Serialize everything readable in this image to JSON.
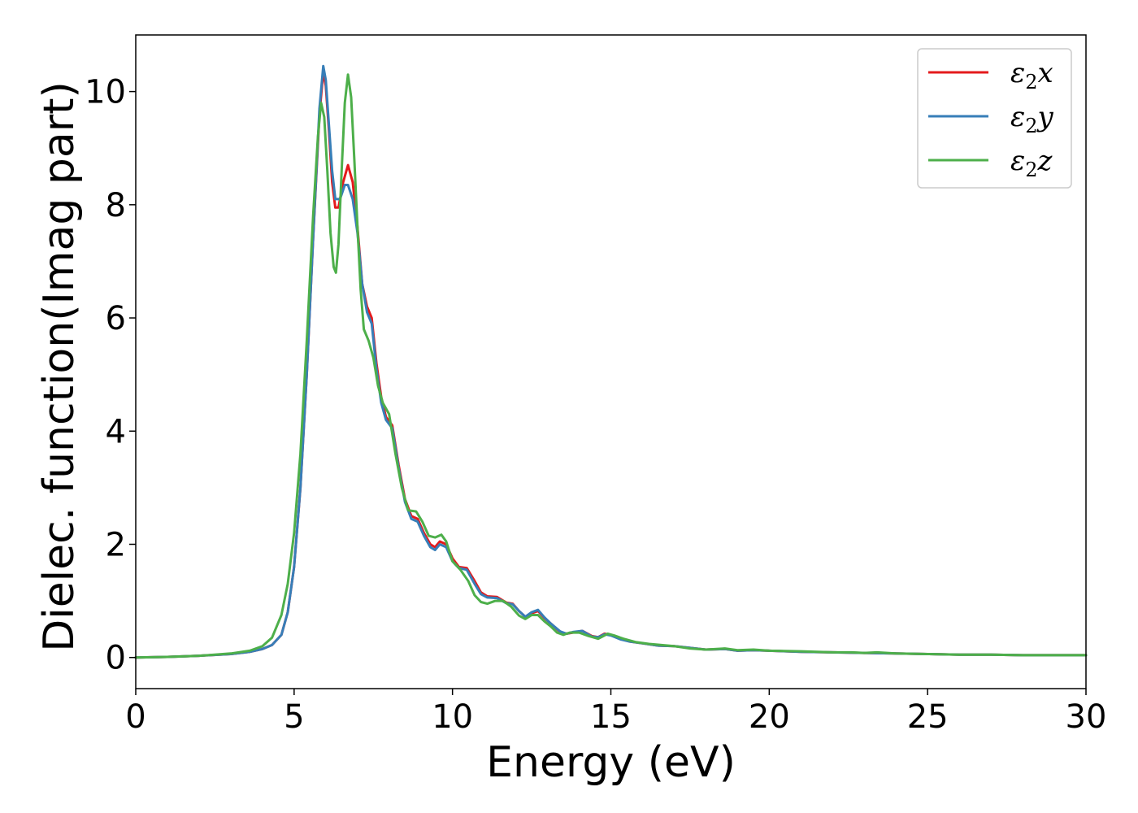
{
  "chart_data": {
    "type": "line",
    "title": "",
    "xlabel": "Energy (eV)",
    "ylabel": "Dielec. function(Imag part)",
    "xlim": [
      0,
      30
    ],
    "ylim": [
      -0.55,
      11.0
    ],
    "xticks": [
      0,
      5,
      10,
      15,
      20,
      25,
      30
    ],
    "xtick_labels": [
      "0",
      "5",
      "10",
      "15",
      "20",
      "25",
      "30"
    ],
    "yticks": [
      0,
      2,
      4,
      6,
      8,
      10
    ],
    "ytick_labels": [
      "0",
      "2",
      "4",
      "6",
      "8",
      "10"
    ],
    "grid": false,
    "legend_position": "top-right",
    "series": [
      {
        "name": "ε2x",
        "legend_base": "ε",
        "legend_sub": "2",
        "legend_tail": "x",
        "color": "#e41a1c",
        "points": [
          [
            0,
            0
          ],
          [
            1,
            0.01
          ],
          [
            2,
            0.03
          ],
          [
            3,
            0.06
          ],
          [
            3.6,
            0.1
          ],
          [
            4,
            0.15
          ],
          [
            4.3,
            0.22
          ],
          [
            4.6,
            0.4
          ],
          [
            4.8,
            0.8
          ],
          [
            5.0,
            1.6
          ],
          [
            5.2,
            3.0
          ],
          [
            5.4,
            5.0
          ],
          [
            5.6,
            7.4
          ],
          [
            5.8,
            9.6
          ],
          [
            5.92,
            10.35
          ],
          [
            6.0,
            10.1
          ],
          [
            6.1,
            9.3
          ],
          [
            6.2,
            8.4
          ],
          [
            6.3,
            7.95
          ],
          [
            6.4,
            7.95
          ],
          [
            6.55,
            8.4
          ],
          [
            6.7,
            8.7
          ],
          [
            6.85,
            8.4
          ],
          [
            7.0,
            7.6
          ],
          [
            7.15,
            6.6
          ],
          [
            7.3,
            6.2
          ],
          [
            7.45,
            6.0
          ],
          [
            7.6,
            5.2
          ],
          [
            7.75,
            4.6
          ],
          [
            7.9,
            4.25
          ],
          [
            8.1,
            4.1
          ],
          [
            8.3,
            3.4
          ],
          [
            8.5,
            2.8
          ],
          [
            8.7,
            2.5
          ],
          [
            8.9,
            2.45
          ],
          [
            9.1,
            2.2
          ],
          [
            9.3,
            2.0
          ],
          [
            9.45,
            1.95
          ],
          [
            9.6,
            2.05
          ],
          [
            9.8,
            2.0
          ],
          [
            10.0,
            1.75
          ],
          [
            10.2,
            1.6
          ],
          [
            10.45,
            1.58
          ],
          [
            10.7,
            1.35
          ],
          [
            10.9,
            1.15
          ],
          [
            11.1,
            1.08
          ],
          [
            11.4,
            1.07
          ],
          [
            11.7,
            0.97
          ],
          [
            11.9,
            0.95
          ],
          [
            12.1,
            0.82
          ],
          [
            12.3,
            0.72
          ],
          [
            12.5,
            0.78
          ],
          [
            12.7,
            0.82
          ],
          [
            12.9,
            0.7
          ],
          [
            13.1,
            0.6
          ],
          [
            13.4,
            0.45
          ],
          [
            13.6,
            0.42
          ],
          [
            13.8,
            0.44
          ],
          [
            14.1,
            0.47
          ],
          [
            14.4,
            0.38
          ],
          [
            14.6,
            0.36
          ],
          [
            14.8,
            0.42
          ],
          [
            15.0,
            0.4
          ],
          [
            15.3,
            0.33
          ],
          [
            15.6,
            0.28
          ],
          [
            16.0,
            0.25
          ],
          [
            16.5,
            0.21
          ],
          [
            17.0,
            0.2
          ],
          [
            17.5,
            0.17
          ],
          [
            18.0,
            0.14
          ],
          [
            18.6,
            0.15
          ],
          [
            19.0,
            0.12
          ],
          [
            19.5,
            0.13
          ],
          [
            20.0,
            0.12
          ],
          [
            21.0,
            0.1
          ],
          [
            22.0,
            0.09
          ],
          [
            23.0,
            0.08
          ],
          [
            24.0,
            0.07
          ],
          [
            25.0,
            0.06
          ],
          [
            26.0,
            0.05
          ],
          [
            27.0,
            0.05
          ],
          [
            28.0,
            0.04
          ],
          [
            29.0,
            0.04
          ],
          [
            30.0,
            0.04
          ]
        ]
      },
      {
        "name": "ε2y",
        "legend_base": "ε",
        "legend_sub": "2",
        "legend_tail": "y",
        "color": "#377eb8",
        "points": [
          [
            0,
            0
          ],
          [
            1,
            0.01
          ],
          [
            2,
            0.03
          ],
          [
            3,
            0.06
          ],
          [
            3.6,
            0.1
          ],
          [
            4,
            0.15
          ],
          [
            4.3,
            0.22
          ],
          [
            4.6,
            0.4
          ],
          [
            4.8,
            0.8
          ],
          [
            5.0,
            1.6
          ],
          [
            5.2,
            3.0
          ],
          [
            5.4,
            5.0
          ],
          [
            5.6,
            7.4
          ],
          [
            5.8,
            9.7
          ],
          [
            5.92,
            10.45
          ],
          [
            6.0,
            10.2
          ],
          [
            6.1,
            9.4
          ],
          [
            6.2,
            8.6
          ],
          [
            6.3,
            8.1
          ],
          [
            6.45,
            8.1
          ],
          [
            6.6,
            8.35
          ],
          [
            6.7,
            8.35
          ],
          [
            6.85,
            8.1
          ],
          [
            7.0,
            7.5
          ],
          [
            7.15,
            6.6
          ],
          [
            7.3,
            6.1
          ],
          [
            7.45,
            5.9
          ],
          [
            7.6,
            5.1
          ],
          [
            7.75,
            4.5
          ],
          [
            7.9,
            4.2
          ],
          [
            8.1,
            4.05
          ],
          [
            8.3,
            3.35
          ],
          [
            8.5,
            2.75
          ],
          [
            8.7,
            2.45
          ],
          [
            8.9,
            2.4
          ],
          [
            9.1,
            2.15
          ],
          [
            9.3,
            1.95
          ],
          [
            9.45,
            1.9
          ],
          [
            9.6,
            2.0
          ],
          [
            9.8,
            1.95
          ],
          [
            10.0,
            1.7
          ],
          [
            10.2,
            1.58
          ],
          [
            10.45,
            1.55
          ],
          [
            10.7,
            1.3
          ],
          [
            10.9,
            1.12
          ],
          [
            11.1,
            1.06
          ],
          [
            11.4,
            1.05
          ],
          [
            11.7,
            0.96
          ],
          [
            11.9,
            0.94
          ],
          [
            12.1,
            0.82
          ],
          [
            12.3,
            0.72
          ],
          [
            12.5,
            0.8
          ],
          [
            12.7,
            0.84
          ],
          [
            12.9,
            0.71
          ],
          [
            13.1,
            0.6
          ],
          [
            13.4,
            0.46
          ],
          [
            13.6,
            0.42
          ],
          [
            13.8,
            0.45
          ],
          [
            14.1,
            0.47
          ],
          [
            14.4,
            0.37
          ],
          [
            14.6,
            0.36
          ],
          [
            14.8,
            0.41
          ],
          [
            15.0,
            0.39
          ],
          [
            15.3,
            0.32
          ],
          [
            15.6,
            0.28
          ],
          [
            16.0,
            0.25
          ],
          [
            16.5,
            0.21
          ],
          [
            17.0,
            0.2
          ],
          [
            17.5,
            0.17
          ],
          [
            18.0,
            0.14
          ],
          [
            18.6,
            0.15
          ],
          [
            19.0,
            0.12
          ],
          [
            19.5,
            0.13
          ],
          [
            20.0,
            0.12
          ],
          [
            21.0,
            0.1
          ],
          [
            22.0,
            0.09
          ],
          [
            23.0,
            0.08
          ],
          [
            24.0,
            0.07
          ],
          [
            25.0,
            0.06
          ],
          [
            26.0,
            0.05
          ],
          [
            27.0,
            0.05
          ],
          [
            28.0,
            0.04
          ],
          [
            29.0,
            0.04
          ],
          [
            30.0,
            0.04
          ]
        ]
      },
      {
        "name": "ε2z",
        "legend_base": "ε",
        "legend_sub": "2",
        "legend_tail": "z",
        "color": "#4daf4a",
        "points": [
          [
            0,
            0
          ],
          [
            1,
            0.01
          ],
          [
            2,
            0.03
          ],
          [
            3,
            0.07
          ],
          [
            3.6,
            0.12
          ],
          [
            4,
            0.2
          ],
          [
            4.3,
            0.35
          ],
          [
            4.6,
            0.75
          ],
          [
            4.8,
            1.3
          ],
          [
            5.0,
            2.2
          ],
          [
            5.2,
            3.6
          ],
          [
            5.4,
            5.6
          ],
          [
            5.6,
            7.8
          ],
          [
            5.75,
            9.2
          ],
          [
            5.85,
            9.8
          ],
          [
            5.95,
            9.55
          ],
          [
            6.05,
            8.6
          ],
          [
            6.15,
            7.5
          ],
          [
            6.25,
            6.9
          ],
          [
            6.32,
            6.8
          ],
          [
            6.4,
            7.3
          ],
          [
            6.5,
            8.6
          ],
          [
            6.6,
            9.8
          ],
          [
            6.7,
            10.3
          ],
          [
            6.8,
            9.9
          ],
          [
            6.9,
            8.8
          ],
          [
            7.0,
            7.6
          ],
          [
            7.1,
            6.5
          ],
          [
            7.2,
            5.8
          ],
          [
            7.35,
            5.6
          ],
          [
            7.5,
            5.3
          ],
          [
            7.65,
            4.8
          ],
          [
            7.8,
            4.5
          ],
          [
            8.0,
            4.3
          ],
          [
            8.2,
            3.6
          ],
          [
            8.4,
            3.0
          ],
          [
            8.6,
            2.6
          ],
          [
            8.85,
            2.58
          ],
          [
            9.05,
            2.4
          ],
          [
            9.25,
            2.15
          ],
          [
            9.45,
            2.12
          ],
          [
            9.65,
            2.17
          ],
          [
            9.8,
            2.05
          ],
          [
            10.0,
            1.7
          ],
          [
            10.25,
            1.55
          ],
          [
            10.5,
            1.35
          ],
          [
            10.7,
            1.1
          ],
          [
            10.9,
            0.98
          ],
          [
            11.1,
            0.95
          ],
          [
            11.35,
            1.0
          ],
          [
            11.6,
            1.0
          ],
          [
            11.85,
            0.9
          ],
          [
            12.1,
            0.74
          ],
          [
            12.3,
            0.68
          ],
          [
            12.5,
            0.75
          ],
          [
            12.7,
            0.75
          ],
          [
            12.9,
            0.64
          ],
          [
            13.1,
            0.55
          ],
          [
            13.3,
            0.44
          ],
          [
            13.5,
            0.4
          ],
          [
            13.7,
            0.44
          ],
          [
            14.0,
            0.44
          ],
          [
            14.3,
            0.38
          ],
          [
            14.6,
            0.33
          ],
          [
            14.9,
            0.42
          ],
          [
            15.1,
            0.39
          ],
          [
            15.4,
            0.33
          ],
          [
            15.8,
            0.27
          ],
          [
            16.2,
            0.24
          ],
          [
            16.6,
            0.22
          ],
          [
            17.0,
            0.2
          ],
          [
            17.5,
            0.16
          ],
          [
            18.0,
            0.14
          ],
          [
            18.6,
            0.16
          ],
          [
            19.0,
            0.13
          ],
          [
            19.5,
            0.14
          ],
          [
            20.0,
            0.12
          ],
          [
            21.0,
            0.11
          ],
          [
            22.0,
            0.09
          ],
          [
            22.6,
            0.09
          ],
          [
            23.0,
            0.08
          ],
          [
            23.4,
            0.09
          ],
          [
            24.0,
            0.07
          ],
          [
            25.0,
            0.06
          ],
          [
            26.0,
            0.05
          ],
          [
            27.0,
            0.05
          ],
          [
            28.0,
            0.04
          ],
          [
            29.0,
            0.04
          ],
          [
            30.0,
            0.04
          ]
        ]
      }
    ]
  }
}
